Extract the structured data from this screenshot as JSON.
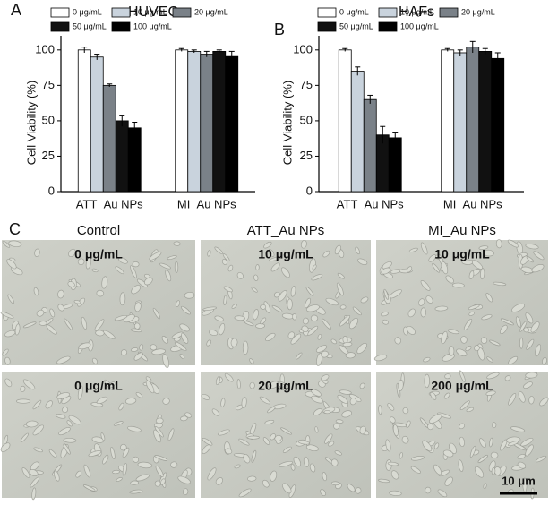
{
  "panel_labels": [
    "A",
    "B",
    "C"
  ],
  "chart_data": [
    {
      "type": "bar",
      "title": "HUVECs",
      "y_label": "Cell Viability (%)",
      "categories": [
        "ATT_Au NPs",
        "MI_Au NPs"
      ],
      "ylim": [
        0,
        110
      ],
      "yticks": [
        0,
        25,
        50,
        75,
        100
      ],
      "legend": "top",
      "series": [
        {
          "name": "0 μg/mL",
          "color": "#ffffff",
          "values": [
            100,
            100
          ],
          "errors": [
            2,
            1
          ]
        },
        {
          "name": "10 μg/mL",
          "color": "#c9d3dd",
          "values": [
            95,
            99
          ],
          "errors": [
            2,
            1
          ]
        },
        {
          "name": "20 μg/mL",
          "color": "#7a8188",
          "values": [
            75,
            97
          ],
          "errors": [
            1,
            2
          ]
        },
        {
          "name": "50 μg/mL",
          "color": "#111111",
          "values": [
            50,
            99
          ],
          "errors": [
            4,
            1
          ]
        },
        {
          "name": "100 μg/mL",
          "color": "#000000",
          "values": [
            45,
            96
          ],
          "errors": [
            4,
            3
          ]
        }
      ]
    },
    {
      "type": "bar",
      "title": "HAFs",
      "y_label": "Cell Viability (%)",
      "categories": [
        "ATT_Au NPs",
        "MI_Au NPs"
      ],
      "ylim": [
        0,
        110
      ],
      "yticks": [
        0,
        25,
        50,
        75,
        100
      ],
      "legend": "top",
      "series": [
        {
          "name": "0 μg/mL",
          "color": "#ffffff",
          "values": [
            100,
            100
          ],
          "errors": [
            1,
            1
          ]
        },
        {
          "name": "10 μg/mL",
          "color": "#c9d3dd",
          "values": [
            85,
            98
          ],
          "errors": [
            3,
            2
          ]
        },
        {
          "name": "20 μg/mL",
          "color": "#7a8188",
          "values": [
            65,
            102
          ],
          "errors": [
            3,
            4
          ]
        },
        {
          "name": "50 μg/mL",
          "color": "#111111",
          "values": [
            40,
            99
          ],
          "errors": [
            6,
            2
          ]
        },
        {
          "name": "100 μg/mL",
          "color": "#000000",
          "values": [
            38,
            94
          ],
          "errors": [
            4,
            4
          ]
        }
      ]
    }
  ],
  "panel_c": {
    "columns": [
      "Control",
      "ATT_Au NPs",
      "MI_Au NPs"
    ],
    "images": [
      [
        "0 μg/mL",
        "10 μg/mL",
        "10 μg/mL"
      ],
      [
        "0 μg/mL",
        "20 μg/mL",
        "200 μg/mL"
      ]
    ],
    "scale_bar": "10 μm"
  }
}
